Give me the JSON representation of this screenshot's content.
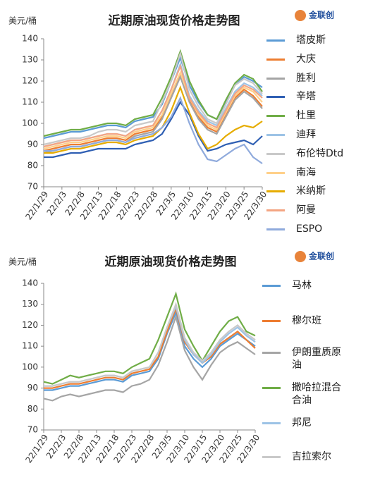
{
  "chart_data": [
    {
      "type": "line",
      "title": "近期原油现货价格走势图",
      "y_label": "美元/桶",
      "source": "金联创",
      "categories": [
        "22/1/29",
        null,
        "22/2/3",
        null,
        "22/2/8",
        null,
        "22/2/13",
        null,
        "22/2/18",
        null,
        "22/2/23",
        null,
        "22/2/28",
        null,
        "22/3/5",
        null,
        "22/3/10",
        null,
        "22/3/15",
        null,
        "22/3/20",
        null,
        "22/3/25",
        null,
        "22/3/30"
      ],
      "ylim": [
        70,
        140
      ],
      "yticks": [
        70,
        80,
        90,
        100,
        110,
        120,
        130,
        140
      ],
      "series": [
        {
          "name": "塔皮斯",
          "color": "#5b9bd5",
          "values": [
            93,
            94,
            95,
            96,
            96,
            97,
            98,
            99,
            99,
            98,
            101,
            102,
            103,
            109,
            120,
            131,
            118,
            110,
            104,
            102,
            110,
            118,
            122,
            120,
            117
          ]
        },
        {
          "name": "大庆",
          "color": "#ed7d31",
          "values": [
            87,
            88,
            89,
            90,
            90,
            91,
            92,
            93,
            93,
            92,
            95,
            96,
            97,
            103,
            113,
            123,
            111,
            103,
            98,
            96,
            104,
            112,
            116,
            113,
            108
          ]
        },
        {
          "name": "胜利",
          "color": "#a5a5a5",
          "values": [
            86,
            87,
            88,
            89,
            89,
            90,
            91,
            92,
            92,
            91,
            94,
            95,
            96,
            102,
            112,
            122,
            110,
            102,
            97,
            95,
            103,
            111,
            115,
            112,
            107
          ]
        },
        {
          "name": "辛塔",
          "color": "#2f5fb3",
          "values": [
            84,
            84,
            85,
            86,
            86,
            87,
            88,
            88,
            88,
            88,
            90,
            91,
            92,
            95,
            102,
            110,
            104,
            94,
            87,
            88,
            90,
            91,
            92,
            90,
            94
          ]
        },
        {
          "name": "杜里",
          "color": "#70ad47",
          "values": [
            94,
            95,
            96,
            97,
            97,
            98,
            99,
            100,
            100,
            99,
            102,
            103,
            104,
            112,
            122,
            134,
            120,
            111,
            104,
            102,
            111,
            119,
            123,
            121,
            115
          ]
        },
        {
          "name": "迪拜",
          "color": "#9dc3e6",
          "values": [
            89,
            90,
            91,
            92,
            92,
            93,
            94,
            95,
            95,
            94,
            97,
            98,
            99,
            106,
            116,
            128,
            113,
            106,
            101,
            99,
            107,
            115,
            119,
            117,
            113
          ]
        },
        {
          "name": "布伦特Dtd",
          "color": "#c9c9c9",
          "values": [
            90,
            91,
            92,
            93,
            93,
            94,
            96,
            97,
            97,
            96,
            99,
            100,
            101,
            110,
            120,
            133,
            116,
            108,
            102,
            100,
            109,
            118,
            121,
            119,
            114
          ]
        },
        {
          "name": "南海",
          "color": "#ffd08a",
          "values": [
            88,
            89,
            90,
            91,
            91,
            92,
            93,
            94,
            94,
            93,
            96,
            97,
            98,
            104,
            114,
            124,
            112,
            104,
            99,
            97,
            105,
            113,
            117,
            115,
            110
          ]
        },
        {
          "name": "米纳斯",
          "color": "#e6ac00",
          "values": [
            86,
            86,
            87,
            88,
            88,
            89,
            90,
            91,
            91,
            90,
            92,
            93,
            94,
            98,
            106,
            117,
            105,
            95,
            88,
            90,
            94,
            97,
            99,
            98,
            101
          ]
        },
        {
          "name": "阿曼",
          "color": "#f4a582",
          "values": [
            89,
            90,
            91,
            92,
            92,
            93,
            94,
            95,
            95,
            94,
            97,
            98,
            99,
            106,
            116,
            127,
            112,
            105,
            100,
            98,
            106,
            114,
            118,
            116,
            112
          ]
        },
        {
          "name": "ESPO",
          "color": "#8faadc",
          "values": [
            87,
            87,
            88,
            89,
            89,
            90,
            91,
            92,
            92,
            91,
            93,
            94,
            95,
            98,
            103,
            112,
            100,
            90,
            83,
            82,
            85,
            88,
            90,
            84,
            81
          ]
        }
      ]
    },
    {
      "type": "line",
      "title": "近期原油现货价格走势图",
      "y_label": "美元/桶",
      "source": "金联创",
      "categories": [
        "22/1/29",
        null,
        "22/2/3",
        null,
        "22/2/8",
        null,
        "22/2/13",
        null,
        "22/2/18",
        null,
        "22/2/23",
        null,
        "22/2/28",
        null,
        "22/3/5",
        null,
        "22/3/10",
        null,
        "22/3/15",
        null,
        "22/3/20",
        null,
        "22/3/25",
        null,
        "22/3/30"
      ],
      "ylim": [
        70,
        140
      ],
      "yticks": [
        70,
        80,
        90,
        100,
        110,
        120,
        130,
        140
      ],
      "series": [
        {
          "name": "马林",
          "color": "#5b9bd5",
          "values": [
            89,
            89,
            90,
            91,
            91,
            92,
            93,
            94,
            94,
            93,
            96,
            97,
            98,
            104,
            116,
            126,
            110,
            104,
            100,
            104,
            110,
            113,
            116,
            113,
            110
          ]
        },
        {
          "name": "穆尔班",
          "color": "#ed7d31",
          "values": [
            90,
            90,
            91,
            92,
            92,
            93,
            94,
            95,
            95,
            94,
            97,
            98,
            99,
            105,
            117,
            128,
            112,
            106,
            102,
            105,
            111,
            114,
            117,
            113,
            109
          ]
        },
        {
          "name": "伊朗重质原油",
          "color": "#a5a5a5",
          "values": [
            85,
            84,
            86,
            87,
            86,
            87,
            88,
            89,
            89,
            88,
            91,
            92,
            94,
            101,
            112,
            124,
            108,
            100,
            94,
            101,
            107,
            110,
            112,
            109,
            106
          ]
        },
        {
          "name": "撒哈拉混合合油",
          "color": "#70ad47",
          "values": [
            93,
            92,
            94,
            96,
            95,
            96,
            97,
            98,
            98,
            97,
            100,
            102,
            104,
            113,
            124,
            135,
            118,
            110,
            103,
            110,
            117,
            122,
            124,
            117,
            115
          ]
        },
        {
          "name": "邦尼",
          "color": "#9dc3e6",
          "values": [
            91,
            91,
            92,
            93,
            93,
            94,
            95,
            96,
            96,
            95,
            98,
            99,
            100,
            107,
            119,
            129,
            113,
            106,
            102,
            106,
            112,
            116,
            119,
            115,
            112
          ]
        },
        {
          "name": "吉拉索尔",
          "color": "#c9c9c9",
          "values": [
            91,
            91,
            92,
            93,
            93,
            94,
            95,
            96,
            96,
            95,
            98,
            99,
            100,
            107,
            119,
            130,
            114,
            107,
            103,
            107,
            113,
            117,
            120,
            116,
            113
          ]
        }
      ]
    }
  ]
}
